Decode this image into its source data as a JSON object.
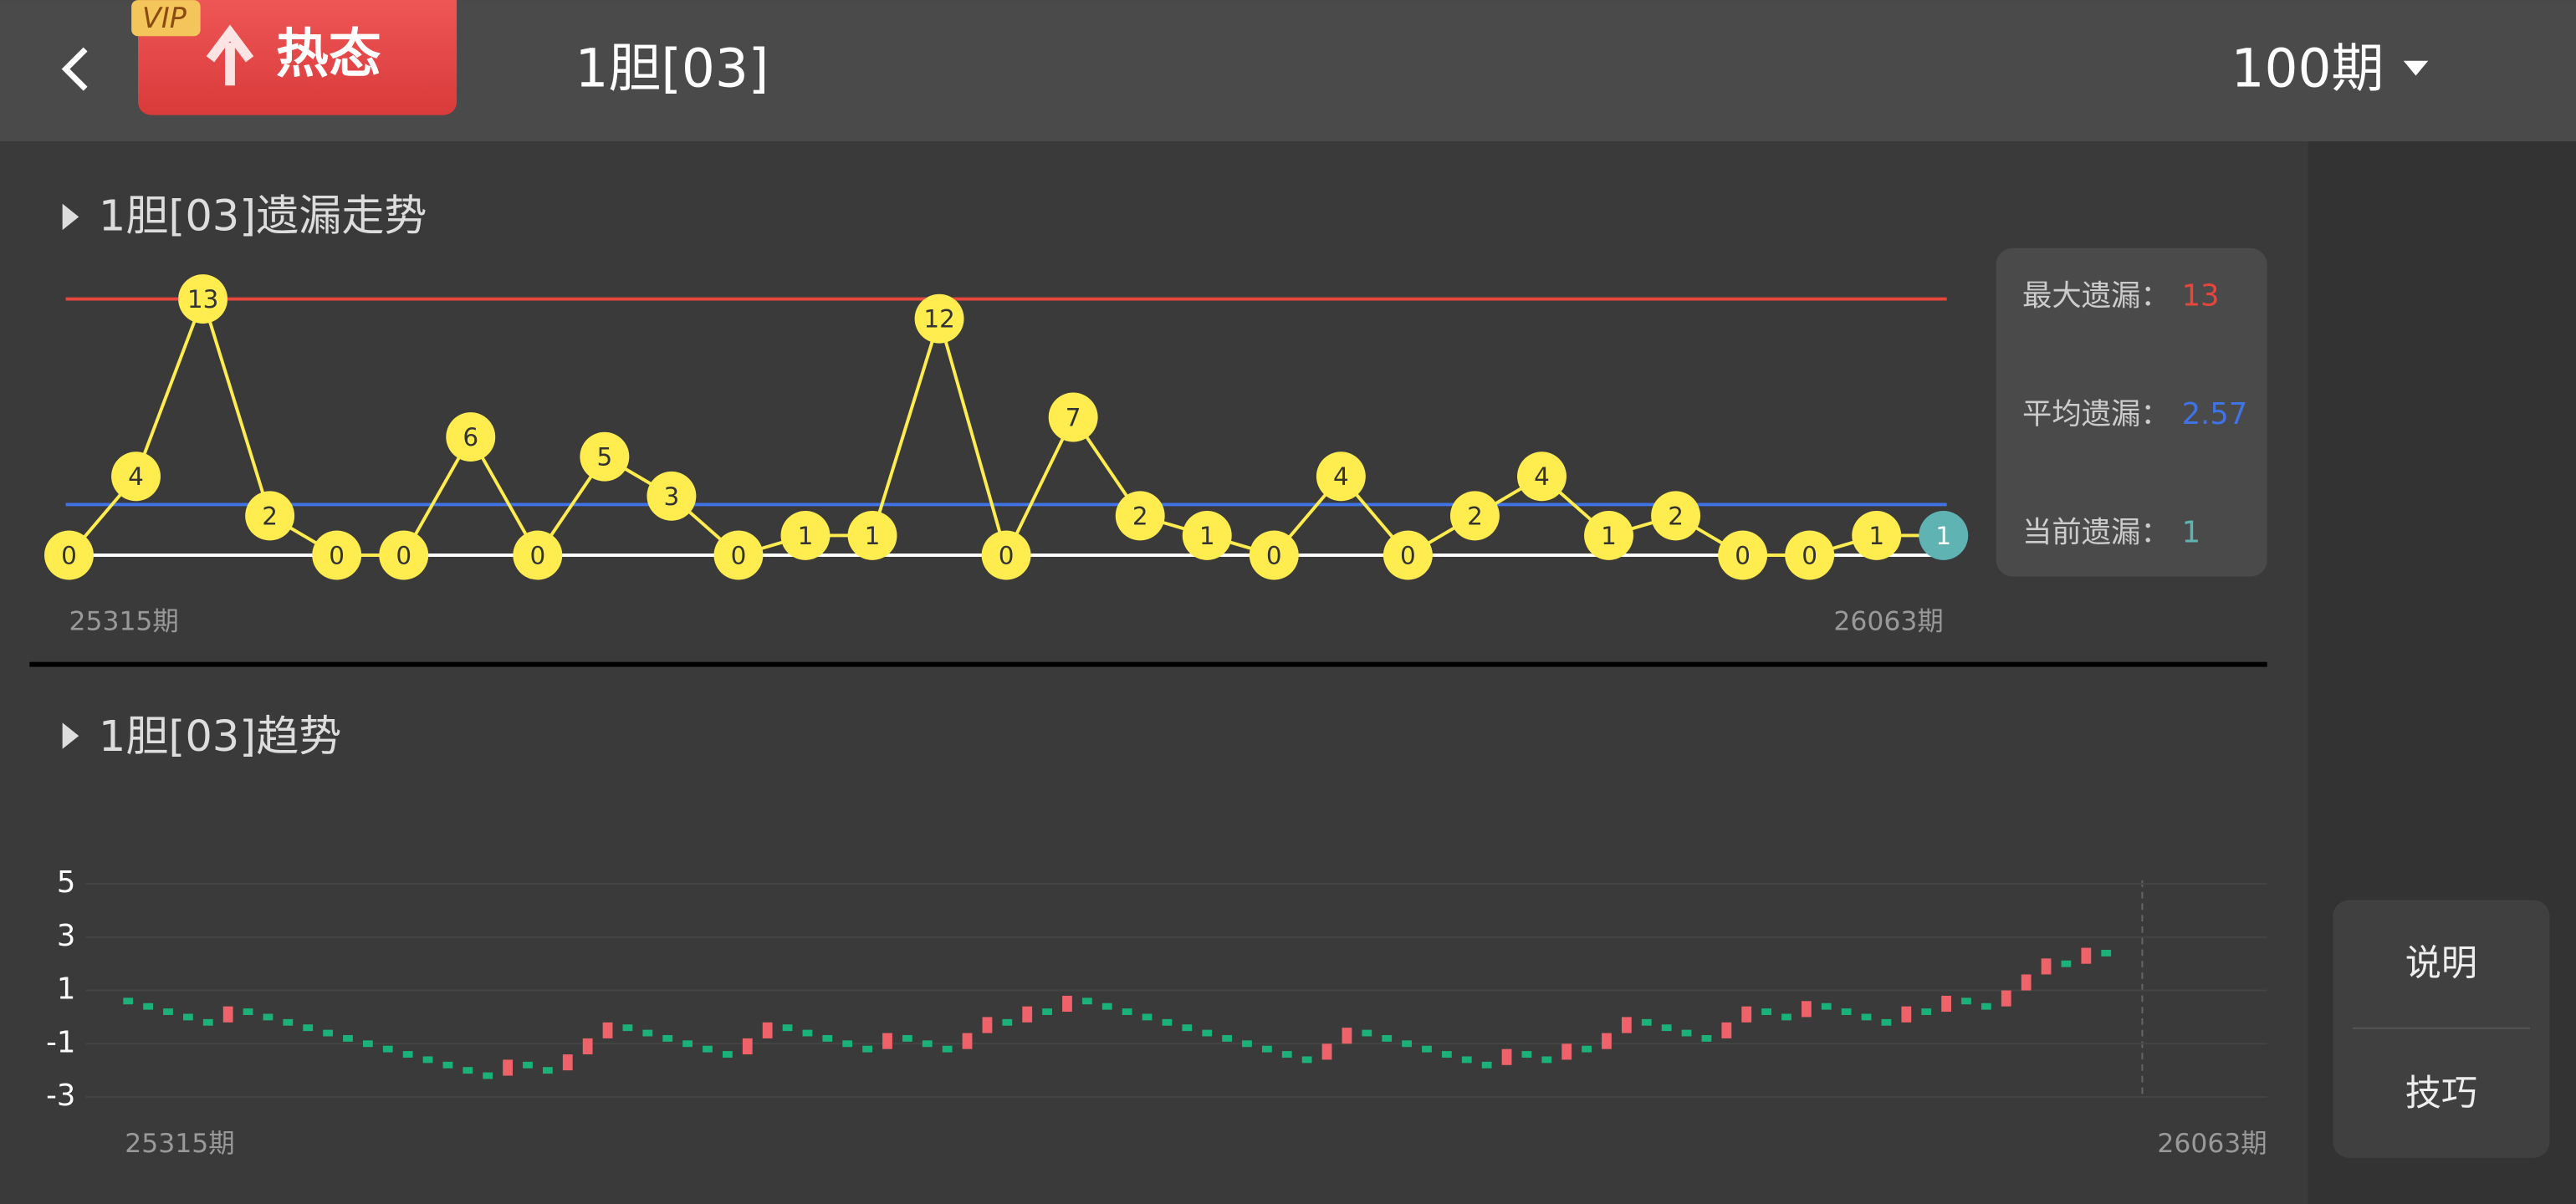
{
  "header": {
    "vip": "VIP",
    "hot": "热态",
    "title": "1胆[03]",
    "periods": "100期"
  },
  "side_buttons": [
    "说明",
    "技巧"
  ],
  "chart_data": [
    {
      "type": "line",
      "title": "1胆[03]遗漏走势",
      "x_start_label": "25315期",
      "x_end_label": "26063期",
      "values": [
        0,
        4,
        13,
        2,
        0,
        0,
        6,
        0,
        5,
        3,
        0,
        1,
        1,
        12,
        0,
        7,
        2,
        1,
        0,
        4,
        0,
        2,
        4,
        1,
        2,
        0,
        0,
        1,
        1
      ],
      "color": "#ffec4f",
      "highlight_color": "#5fb3b3",
      "ylim": [
        0,
        13
      ],
      "stats": [
        {
          "label": "最大遗漏：",
          "value": 13,
          "color": "#e8453c"
        },
        {
          "label": "平均遗漏：",
          "value": 2.57,
          "color": "#3f73e6"
        },
        {
          "label": "当前遗漏：",
          "value": 1,
          "color": "#5fb3b3"
        }
      ]
    },
    {
      "type": "trend",
      "title": "1胆[03]趋势",
      "x_start_label": "25315期",
      "x_end_label": "26063期",
      "values": [
        0.6,
        0.4,
        0.2,
        0.0,
        -0.2,
        0.4,
        0.2,
        0,
        -0.2,
        -0.4,
        -0.6,
        -0.8,
        -1.0,
        -1.2,
        -1.4,
        -1.6,
        -1.8,
        -2.0,
        -2.2,
        -1.6,
        -1.8,
        -2.0,
        -1.4,
        -0.8,
        -0.2,
        -0.4,
        -0.6,
        -0.8,
        -1.0,
        -1.2,
        -1.4,
        -0.8,
        -0.2,
        -0.4,
        -0.6,
        -0.8,
        -1.0,
        -1.2,
        -0.6,
        -0.8,
        -1.0,
        -1.2,
        -0.6,
        0.0,
        -0.2,
        0.4,
        0.2,
        0.8,
        0.6,
        0.4,
        0.2,
        0,
        -0.2,
        -0.4,
        -0.6,
        -0.8,
        -1.0,
        -1.2,
        -1.4,
        -1.6,
        -1.0,
        -0.4,
        -0.6,
        -0.8,
        -1.0,
        -1.2,
        -1.4,
        -1.6,
        -1.8,
        -1.2,
        -1.4,
        -1.6,
        -1.0,
        -1.2,
        -0.6,
        0.0,
        -0.2,
        -0.4,
        -0.6,
        -0.8,
        -0.2,
        0.4,
        0.2,
        0.0,
        0.6,
        0.4,
        0.2,
        0,
        -0.2,
        0.4,
        0.2,
        0.8,
        0.6,
        0.4,
        1.0,
        1.6,
        2.2,
        2.0,
        2.6,
        2.4
      ],
      "up_color": "#f0626a",
      "down_color": "#1bb27a",
      "ylim": [
        -3.5,
        5.5
      ],
      "yticks": [
        5,
        3,
        1,
        -1,
        -3
      ],
      "grid": true
    }
  ]
}
